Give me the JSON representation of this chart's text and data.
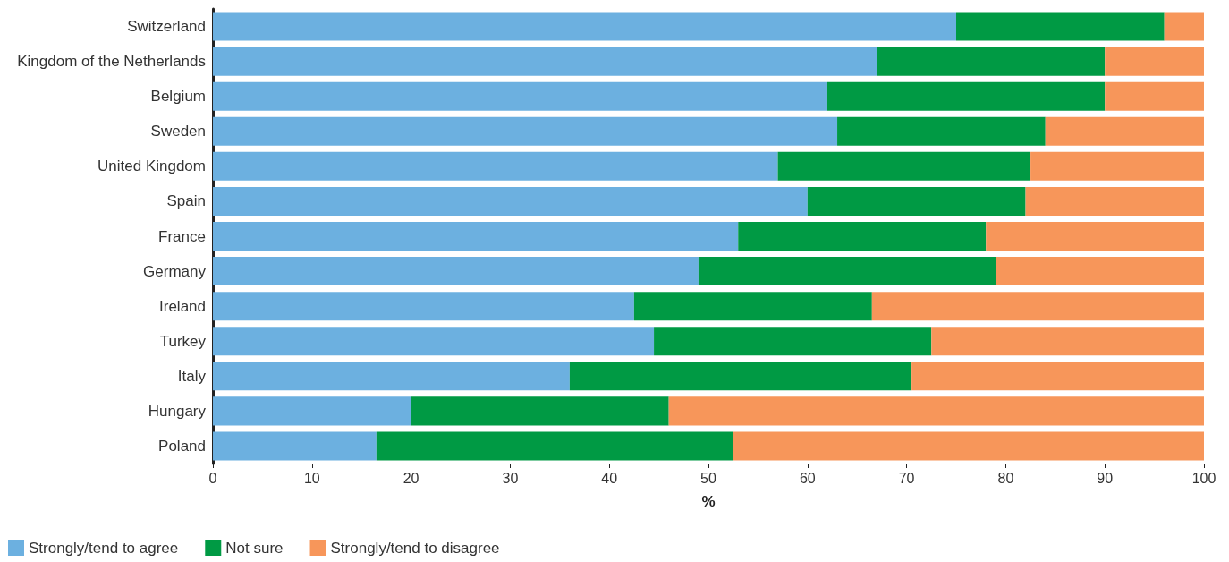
{
  "chart_data": {
    "type": "bar",
    "orientation": "horizontal",
    "stacked": true,
    "xlabel": "%",
    "categories": [
      "Switzerland",
      "Kingdom of the Netherlands",
      "Belgium",
      "Sweden",
      "United Kingdom",
      "Spain",
      "France",
      "Germany",
      "Ireland",
      "Turkey",
      "Italy",
      "Hungary",
      "Poland"
    ],
    "series": [
      {
        "name": "Strongly/tend to agree",
        "color": "#6cb0e0",
        "values": [
          75,
          67,
          62,
          63,
          57,
          60,
          53,
          49,
          42.5,
          44.5,
          36,
          20,
          16.5
        ]
      },
      {
        "name": "Not sure",
        "color": "#009a44",
        "values": [
          21,
          23,
          28,
          21,
          25.5,
          22,
          25,
          30,
          24,
          28,
          34.5,
          26,
          36
        ]
      },
      {
        "name": "Strongly/tend to disagree",
        "color": "#f7965a",
        "values": [
          4,
          10,
          10,
          16,
          17.5,
          18,
          22,
          21,
          33.5,
          27.5,
          29.5,
          54,
          47.5
        ]
      }
    ],
    "xlim": [
      0,
      100
    ],
    "xticks": [
      0,
      10,
      20,
      30,
      40,
      50,
      60,
      70,
      80,
      90,
      100
    ],
    "grid": false,
    "legend": "bottom left"
  }
}
